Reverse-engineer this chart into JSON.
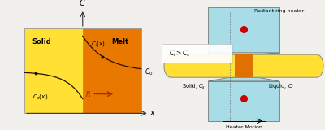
{
  "bg_color": "#F2F0EC",
  "solid_color": "#FFE033",
  "melt_color": "#E87800",
  "orange_center": "#E07000",
  "cyan_color": "#A8DDE8",
  "curve_color": "#2A1000",
  "dark_orange": "#A03000",
  "red_dot": "#CC0000",
  "left_panel": {
    "solid_label": "Solid",
    "melt_label": "Melt",
    "cl_label": "$C_l(x)$",
    "cs_label": "$C_s(x)$",
    "r_label": "$R$",
    "c0_label": "$C_0$",
    "c_axis": "$C$",
    "x_axis": "$x$"
  },
  "right_panel": {
    "heater_label": "Radiant ring heater",
    "cl_cs_label": "$C_l > C_s$",
    "solid_label": "Solid, $C_s$",
    "liquid_label": "Liquid, $C_l$",
    "motion_label": "Heater Motion"
  }
}
